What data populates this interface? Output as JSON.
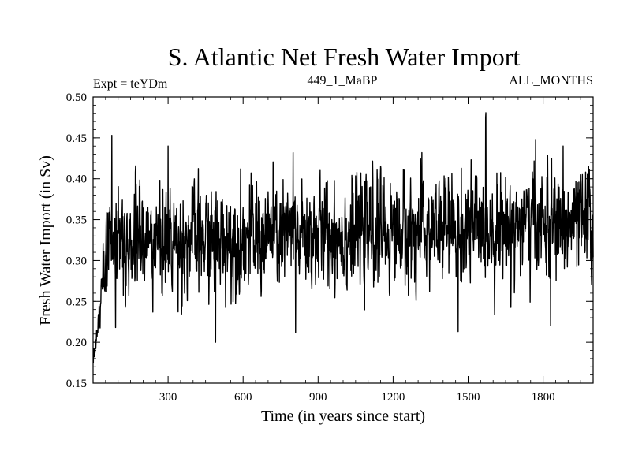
{
  "chart_data": {
    "type": "line",
    "title": "S. Atlantic Net Fresh Water Import",
    "subtitle_left": "Expt = teYDm",
    "subtitle_center": "449_1_MaBP",
    "subtitle_right": "ALL_MONTHS",
    "xlabel": "Time (in years since start)",
    "ylabel": "Fresh Water Import (in Sv)",
    "xlim": [
      0,
      2000
    ],
    "ylim": [
      0.15,
      0.5
    ],
    "x_ticks": [
      300,
      600,
      900,
      1200,
      1500,
      1800
    ],
    "x_tick_labels": [
      "300",
      "600",
      "900",
      "1200",
      "1500",
      "1800"
    ],
    "y_ticks": [
      0.15,
      0.2,
      0.25,
      0.3,
      0.35,
      0.4,
      0.45,
      0.5
    ],
    "y_tick_labels": [
      "0.15",
      "0.20",
      "0.25",
      "0.30",
      "0.35",
      "0.40",
      "0.45",
      "0.50"
    ],
    "grid": false,
    "series": [
      {
        "name": "Net Fresh Water Import",
        "color": "#000000",
        "note": "noisy annual series; mean ~0.32 Sv early rising to ~0.34 Sv late",
        "x_start": 1,
        "x_step": 1,
        "n": 2000,
        "initial_value": 0.18,
        "spinup_years": 60,
        "mean_early": 0.32,
        "mean_late": 0.345,
        "noise_sd": 0.03,
        "peaks": [
          {
            "x": 75,
            "y": 0.453
          },
          {
            "x": 300,
            "y": 0.44
          },
          {
            "x": 800,
            "y": 0.432
          },
          {
            "x": 1570,
            "y": 0.475
          },
          {
            "x": 1770,
            "y": 0.448
          },
          {
            "x": 1880,
            "y": 0.44
          }
        ],
        "troughs": [
          {
            "x": 0,
            "y": 0.175
          },
          {
            "x": 90,
            "y": 0.218
          },
          {
            "x": 490,
            "y": 0.2
          },
          {
            "x": 810,
            "y": 0.212
          },
          {
            "x": 1460,
            "y": 0.213
          },
          {
            "x": 1830,
            "y": 0.22
          }
        ]
      }
    ]
  }
}
